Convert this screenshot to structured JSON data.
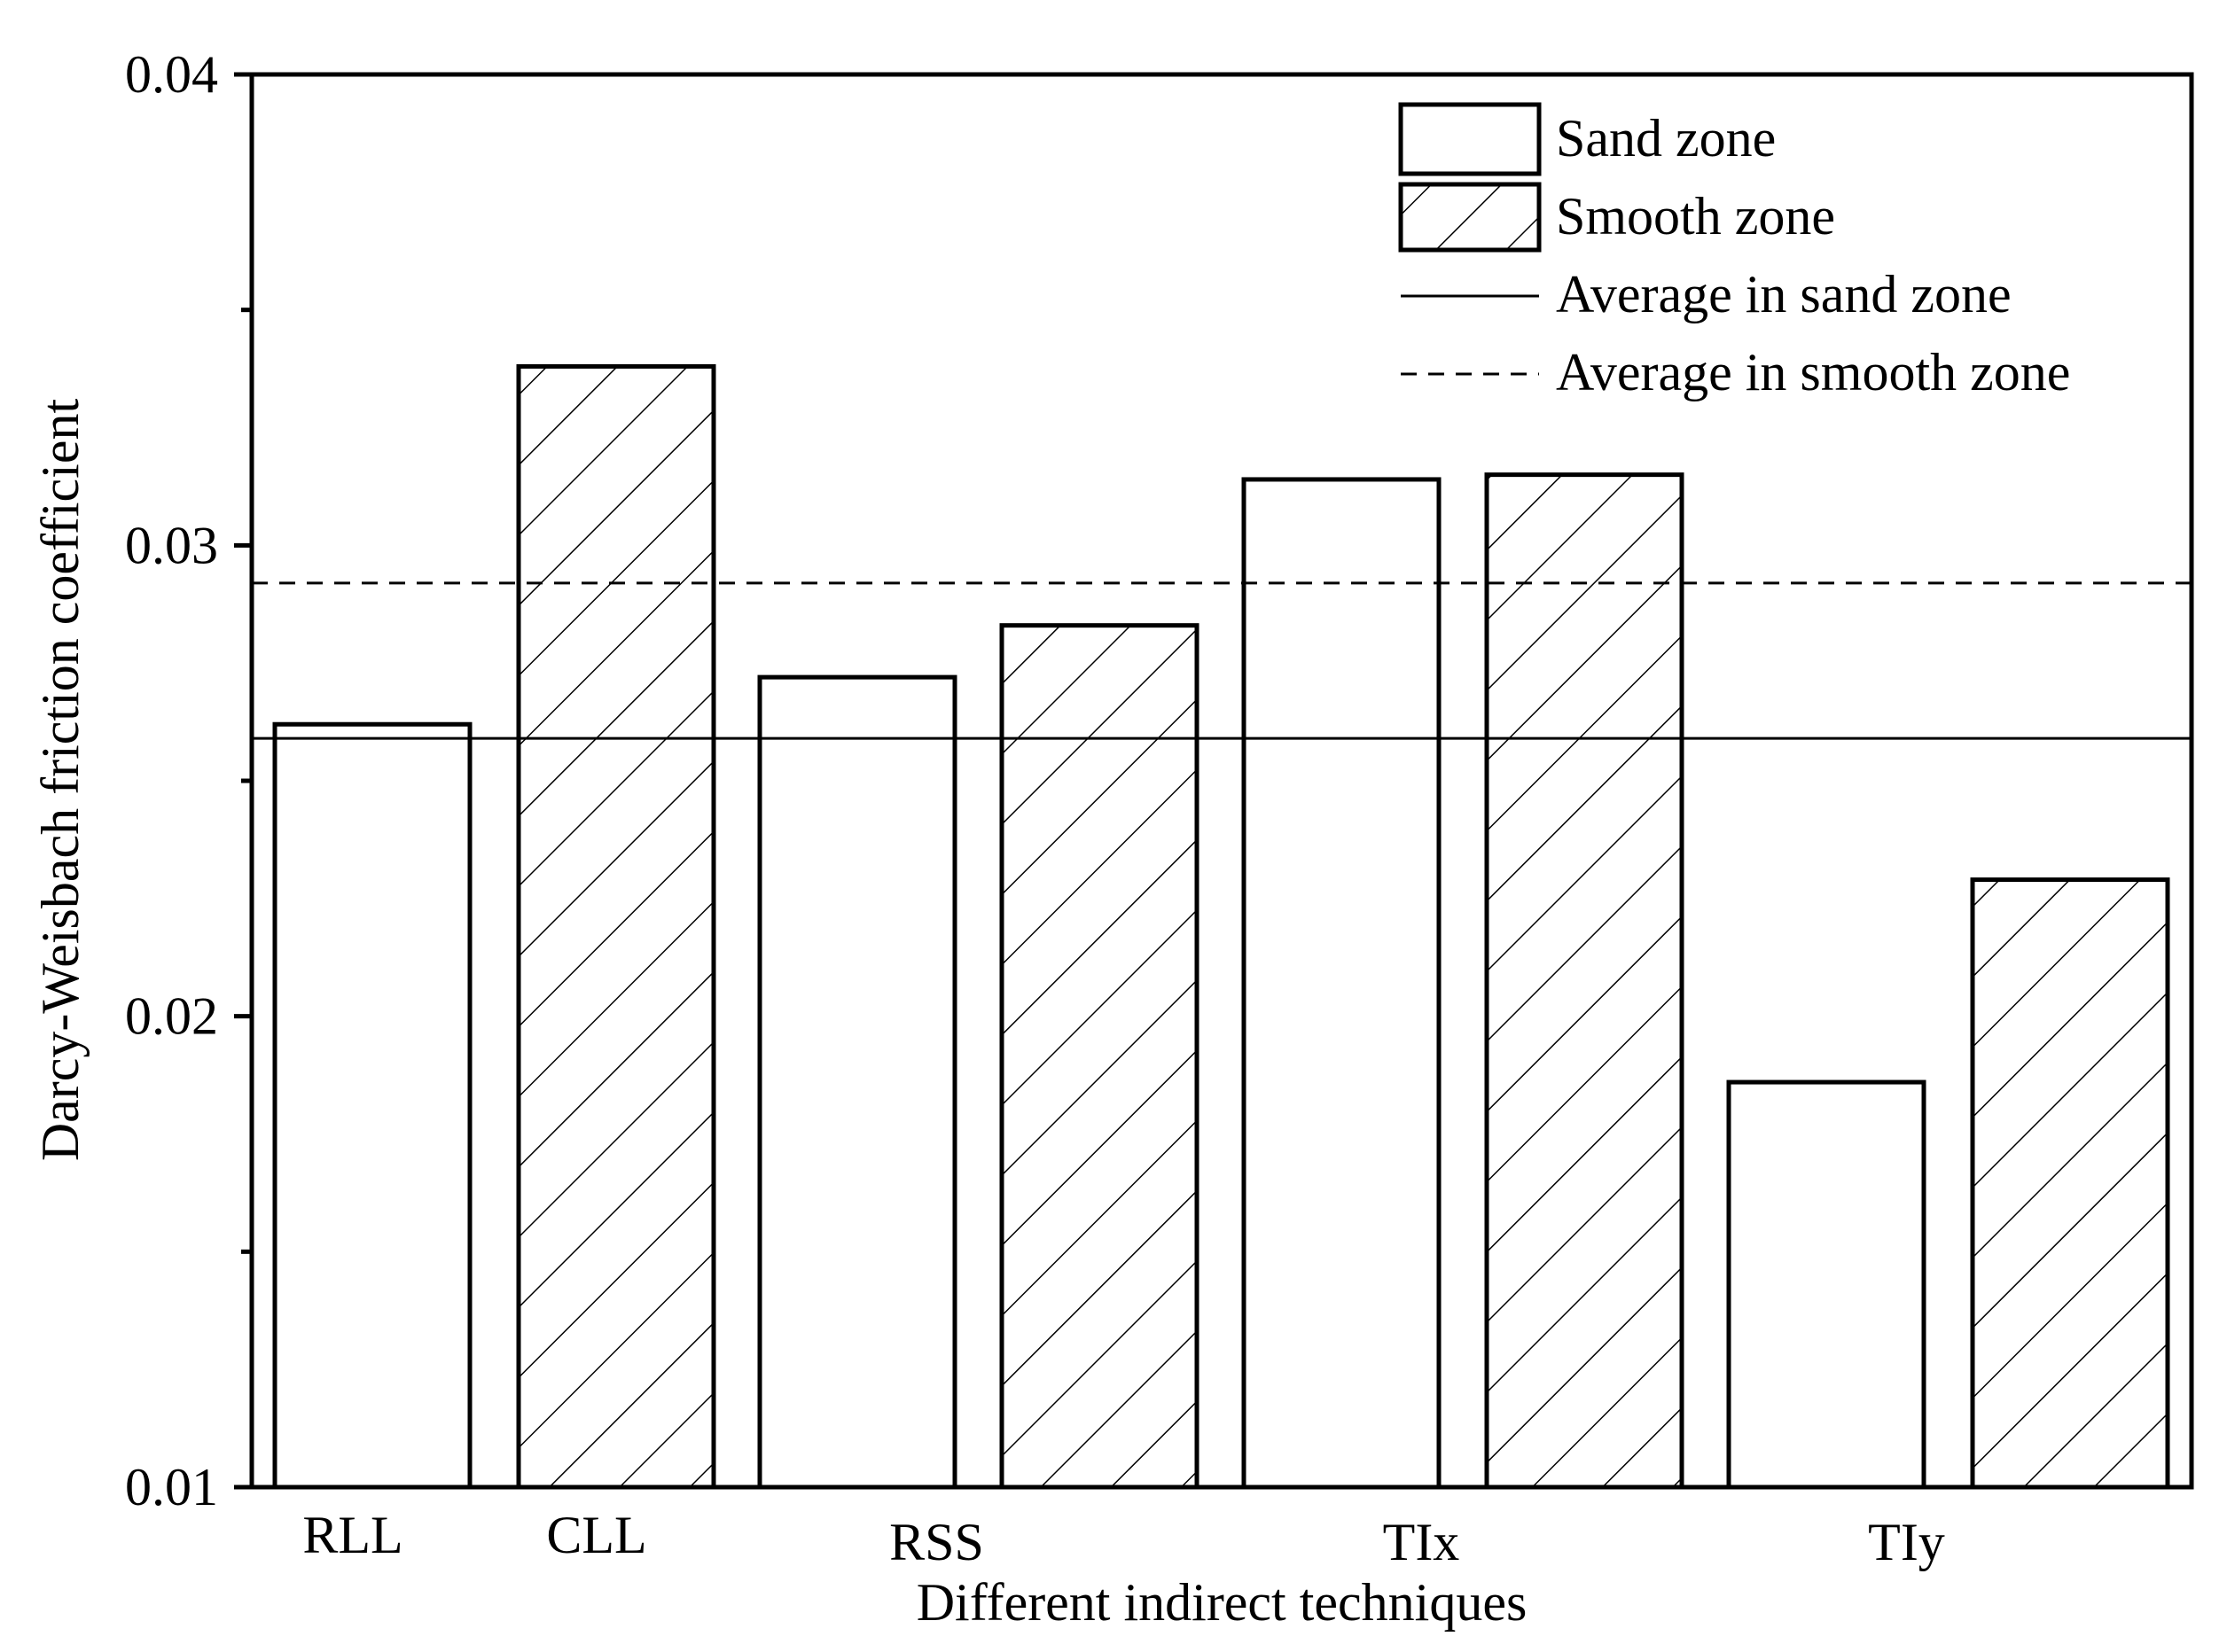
{
  "chart_data": {
    "type": "bar",
    "title": "",
    "xlabel": "Different indirect techniques",
    "ylabel": "Darcy-Weisbach friction coefficient",
    "ylim": [
      0.01,
      0.04
    ],
    "yticks": [
      0.01,
      0.02,
      0.03,
      0.04
    ],
    "ytick_labels": [
      "0.01",
      "0.02",
      "0.03",
      "0.04"
    ],
    "y_minor_ticks": [
      0.015,
      0.025,
      0.035
    ],
    "bars": [
      {
        "label": "RLL",
        "series": "Sand zone",
        "value": 0.0262
      },
      {
        "label": "CLL",
        "series": "Smooth zone",
        "value": 0.0338
      },
      {
        "label": "",
        "series": "Sand zone",
        "value": 0.0272
      },
      {
        "label": "",
        "series": "Smooth zone",
        "value": 0.0283
      },
      {
        "label": "",
        "series": "Sand zone",
        "value": 0.0314
      },
      {
        "label": "",
        "series": "Smooth zone",
        "value": 0.0315
      },
      {
        "label": "",
        "series": "Sand zone",
        "value": 0.0186
      },
      {
        "label": "",
        "series": "Smooth zone",
        "value": 0.0229
      }
    ],
    "group_labels": [
      {
        "label": "RSS",
        "bars": [
          2,
          3
        ]
      },
      {
        "label": "TIx",
        "bars": [
          4,
          5
        ]
      },
      {
        "label": "TIy",
        "bars": [
          6,
          7
        ]
      }
    ],
    "averages": [
      {
        "name": "Average in sand zone",
        "value": 0.0259,
        "style": "solid"
      },
      {
        "name": "Average in smooth zone",
        "value": 0.0292,
        "style": "dashed"
      }
    ],
    "legend": {
      "position": "top-right",
      "entries": [
        "Sand zone",
        "Smooth zone",
        "Average in sand zone",
        "Average in smooth zone"
      ]
    },
    "grid": false
  }
}
